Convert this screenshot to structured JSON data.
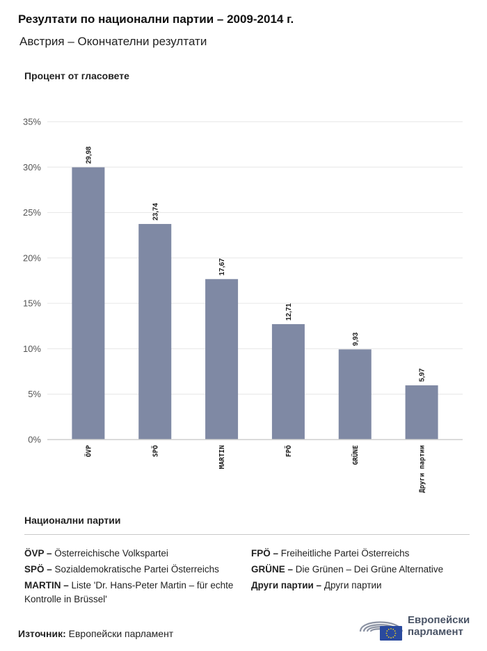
{
  "title": "Резултати по национални партии – 2009-2014 г.",
  "subtitle": "Австрия – Окончателни резултати",
  "legend": {
    "title": "Национални партии",
    "left": [
      {
        "abbr": "ÖVP –",
        "name": " Österreichische Volkspartei"
      },
      {
        "abbr": "SPÖ –",
        "name": " Sozialdemokratische Partei Österreichs"
      },
      {
        "abbr": "MARTIN –",
        "name": " Liste 'Dr. Hans-Peter Martin – für echte Kontrolle in Brüssel'"
      }
    ],
    "right": [
      {
        "abbr": "FPÖ –",
        "name": " Freiheitliche Partei Österreichs"
      },
      {
        "abbr": "GRÜNE –",
        "name": " Die Grünen – Dei Grüne Alternative"
      },
      {
        "abbr": "Други партии –",
        "name": " Други партии"
      }
    ]
  },
  "source": {
    "label": "Източник:",
    "value": " Европейски парламент"
  },
  "logo": {
    "line1": "Европейски",
    "line2": "парламент"
  },
  "colors": {
    "bar": "#7f89a4",
    "grid": "#e6e6e6",
    "axis": "#cfcfcf",
    "flag": "#2a4a9e",
    "stars": "#f2d21b"
  },
  "chart_data": {
    "type": "bar",
    "ylabel": "Процент от гласовете",
    "categories": [
      "ÖVP",
      "SPÖ",
      "MARTIN",
      "FPÖ",
      "GRÜNE",
      "Други партии"
    ],
    "values": [
      29.98,
      23.74,
      17.67,
      12.71,
      9.93,
      5.97
    ],
    "value_labels": [
      "29,98",
      "23,74",
      "17,67",
      "12,71",
      "9,93",
      "5,97"
    ],
    "yticks": [
      "0%",
      "5%",
      "10%",
      "15%",
      "20%",
      "25%",
      "30%",
      "35%"
    ],
    "ylim": [
      0,
      35
    ],
    "grid": true,
    "legend": "none"
  }
}
